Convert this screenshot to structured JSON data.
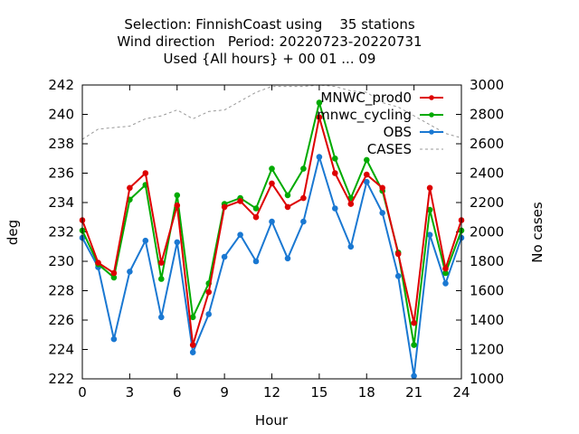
{
  "chart_data": {
    "type": "line",
    "title_lines": [
      "Selection: FinnishCoast using    35 stations",
      "Wind direction   Period: 20220723-20220731",
      "Used {All hours} + 00 01 ... 09"
    ],
    "xlabel": "Hour",
    "ylabel": "deg",
    "y2label": "No cases",
    "xlim": [
      0,
      24
    ],
    "ylim": [
      222,
      242
    ],
    "y2lim": [
      1000,
      3000
    ],
    "xticks": [
      0,
      3,
      6,
      9,
      12,
      15,
      18,
      21,
      24
    ],
    "yticks": [
      222,
      224,
      226,
      228,
      230,
      232,
      234,
      236,
      238,
      240,
      242
    ],
    "y2ticks": [
      1000,
      1200,
      1400,
      1600,
      1800,
      2000,
      2200,
      2400,
      2600,
      2800,
      3000
    ],
    "grid": false,
    "legend_position": "top-right",
    "x": [
      0,
      1,
      2,
      3,
      4,
      5,
      6,
      7,
      8,
      9,
      10,
      11,
      12,
      13,
      14,
      15,
      16,
      17,
      18,
      19,
      20,
      21,
      22,
      23,
      24
    ],
    "series": [
      {
        "name": "MNWC_prod0",
        "color": "#dd0000",
        "axis": "left",
        "values": [
          232.8,
          229.9,
          229.2,
          235.0,
          236.0,
          229.9,
          233.8,
          224.3,
          227.9,
          233.7,
          234.1,
          233.0,
          235.3,
          233.7,
          234.3,
          239.8,
          236.0,
          233.9,
          235.9,
          235.0,
          230.5,
          225.8,
          235.0,
          229.5,
          232.8
        ]
      },
      {
        "name": "mnwc_cycling",
        "color": "#00aa00",
        "axis": "left",
        "values": [
          232.1,
          229.8,
          228.9,
          234.2,
          235.2,
          228.8,
          234.5,
          226.2,
          228.5,
          233.9,
          234.3,
          233.6,
          236.3,
          234.5,
          236.3,
          240.8,
          237.0,
          234.3,
          236.9,
          234.8,
          230.6,
          224.3,
          233.5,
          229.2,
          232.1
        ]
      },
      {
        "name": "OBS",
        "color": "#1a78d2",
        "axis": "left",
        "values": [
          231.6,
          229.6,
          224.7,
          229.3,
          231.4,
          226.2,
          231.3,
          223.8,
          226.4,
          230.3,
          231.8,
          230.0,
          232.7,
          230.2,
          232.7,
          237.1,
          233.6,
          231.0,
          235.4,
          233.3,
          229.0,
          222.2,
          231.8,
          228.5,
          231.6
        ]
      },
      {
        "name": "CASES",
        "color": "#999999",
        "axis": "right",
        "dashed": true,
        "values": [
          2630,
          2700,
          2710,
          2720,
          2770,
          2790,
          2830,
          2770,
          2820,
          2830,
          2890,
          2950,
          2990,
          2990,
          2990,
          3000,
          2990,
          2960,
          2950,
          2880,
          2850,
          2790,
          2730,
          2670,
          2640
        ]
      }
    ]
  }
}
